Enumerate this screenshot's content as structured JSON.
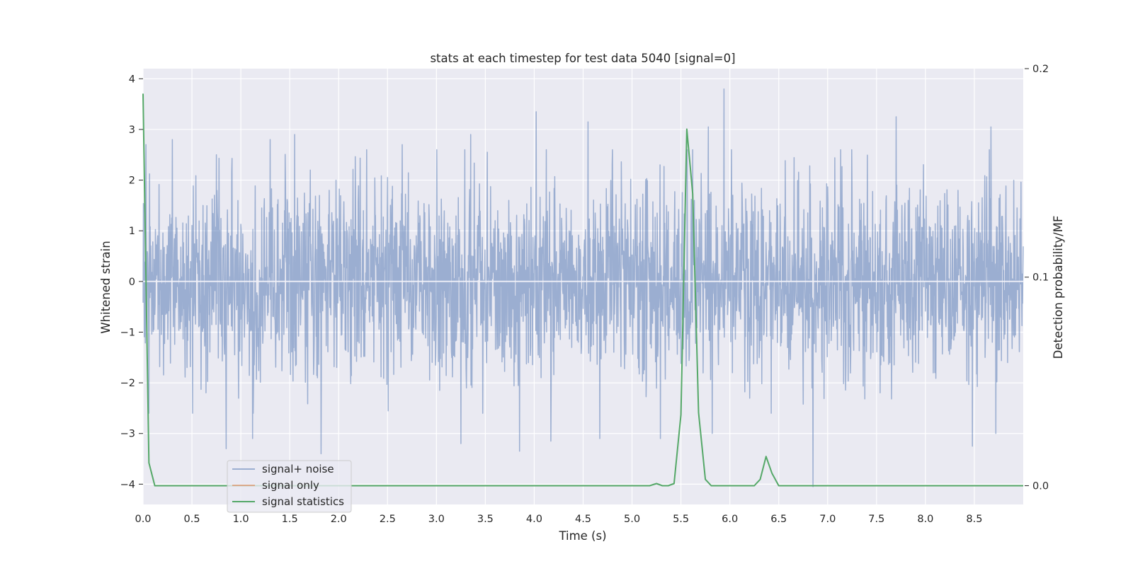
{
  "chart_data": {
    "type": "line",
    "title": "stats at each timestep for test data 5040 [signal=0]",
    "xlabel": "Time (s)",
    "ylabel_left": "Whitened strain",
    "ylabel_right": "Detection probability/MF",
    "xlim": [
      0.0,
      9.0
    ],
    "ylim_left": [
      -4.4,
      4.2
    ],
    "ylim_right": [
      -0.009,
      0.2
    ],
    "x_ticks": [
      "0.0",
      "0.5",
      "1.0",
      "1.5",
      "2.0",
      "2.5",
      "3.0",
      "3.5",
      "4.0",
      "4.5",
      "5.0",
      "5.5",
      "6.0",
      "6.5",
      "7.0",
      "7.5",
      "8.0",
      "8.5"
    ],
    "y_ticks_left": [
      "4",
      "3",
      "2",
      "1",
      "0",
      "−1",
      "−2",
      "−3",
      "−4"
    ],
    "y_ticks_right": [
      "0.2",
      "0.1",
      "0.0"
    ],
    "grid": true,
    "legend_position": "lower-left",
    "series": [
      {
        "name": "signal+ noise",
        "axis": "left",
        "color": "#4c72b0",
        "description": "dense whitened noise, roughly within ±2.5 with spikes",
        "spikes": [
          {
            "x": 0.03,
            "y": 2.7
          },
          {
            "x": 0.06,
            "y": -2.6
          },
          {
            "x": 0.3,
            "y": 2.8
          },
          {
            "x": 0.75,
            "y": 2.5
          },
          {
            "x": 0.85,
            "y": -3.3
          },
          {
            "x": 1.12,
            "y": -3.1
          },
          {
            "x": 1.3,
            "y": 2.8
          },
          {
            "x": 1.55,
            "y": 2.9
          },
          {
            "x": 1.82,
            "y": -3.4
          },
          {
            "x": 2.65,
            "y": 2.7
          },
          {
            "x": 3.25,
            "y": -3.2
          },
          {
            "x": 3.35,
            "y": 2.9
          },
          {
            "x": 3.85,
            "y": -3.35
          },
          {
            "x": 4.02,
            "y": 3.35
          },
          {
            "x": 4.17,
            "y": -3.15
          },
          {
            "x": 4.55,
            "y": 3.15
          },
          {
            "x": 4.67,
            "y": -3.1
          },
          {
            "x": 5.29,
            "y": -3.1
          },
          {
            "x": 5.78,
            "y": 3.05
          },
          {
            "x": 5.82,
            "y": -3.0
          },
          {
            "x": 5.94,
            "y": 3.8
          },
          {
            "x": 6.85,
            "y": -4.05
          },
          {
            "x": 7.7,
            "y": 3.25
          },
          {
            "x": 8.48,
            "y": -3.25
          },
          {
            "x": 8.67,
            "y": 3.05
          },
          {
            "x": 8.72,
            "y": -3.0
          }
        ]
      },
      {
        "name": "signal only",
        "axis": "left",
        "color": "#dd8452",
        "x": [
          0.0,
          9.0
        ],
        "y": [
          0.0,
          0.0
        ]
      },
      {
        "name": "signal statistics",
        "axis": "right",
        "color": "#55a868",
        "x": [
          0.0,
          0.06,
          0.12,
          0.19,
          5.05,
          5.12,
          5.18,
          5.25,
          5.31,
          5.37,
          5.43,
          5.5,
          5.56,
          5.62,
          5.68,
          5.75,
          5.81,
          5.87,
          6.25,
          6.31,
          6.37,
          6.43,
          6.5,
          6.56,
          9.0
        ],
        "y": [
          0.188,
          0.011,
          0.0,
          0.0,
          0.0,
          0.0,
          0.0,
          0.001,
          0.0,
          0.0,
          0.001,
          0.034,
          0.171,
          0.14,
          0.035,
          0.003,
          0.0,
          0.0,
          0.0,
          0.003,
          0.014,
          0.006,
          0.0,
          0.0,
          0.0
        ]
      }
    ]
  }
}
